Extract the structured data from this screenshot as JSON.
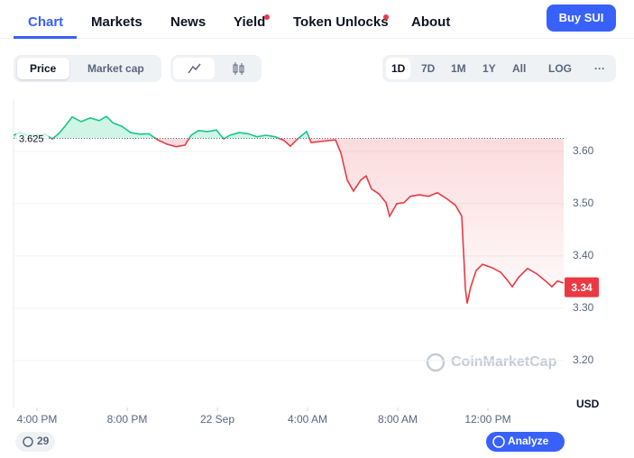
{
  "nav": {
    "tabs": [
      "Chart",
      "Markets",
      "News",
      "Yield",
      "Token Unlocks",
      "About"
    ],
    "buy_button": "Buy SUI"
  },
  "toolbar": {
    "toggle": [
      "Price",
      "Market cap"
    ],
    "ranges": [
      "1D",
      "7D",
      "1M",
      "1Y",
      "All",
      "LOG",
      "···"
    ]
  },
  "chart_data": {
    "type": "line",
    "color_up": "#16c784",
    "color_down": "#ea3943",
    "reference": 3.625,
    "current_price": 3.34,
    "y_unit": "USD",
    "watermark": "CoinMarketCap",
    "x": [
      14.96,
      15.24,
      15.56,
      15.96,
      16.36,
      16.68,
      16.96,
      17.24,
      17.56,
      17.96,
      18.36,
      18.76,
      19.08,
      19.36,
      19.76,
      20.16,
      20.56,
      20.96,
      21.36,
      21.76,
      22.16,
      22.56,
      22.84,
      23.16,
      23.56,
      23.96,
      24.28,
      24.56,
      24.96,
      25.36,
      25.76,
      26.16,
      26.56,
      26.96,
      27.24,
      27.56,
      27.96,
      28.16,
      28.56,
      28.96,
      29.24,
      29.48,
      29.76,
      30.04,
      30.36,
      30.6,
      30.84,
      31.16,
      31.48,
      31.64,
      31.96,
      32.28,
      32.56,
      32.96,
      33.36,
      33.76,
      34.16,
      34.56,
      34.84,
      35.0,
      35.08,
      35.24,
      35.48,
      35.76,
      36.16,
      36.56,
      36.84,
      37.08,
      37.36,
      37.76,
      38.16,
      38.56,
      38.84,
      39.08,
      39.36
    ],
    "series": [
      {
        "values": [
          3.631,
          3.636,
          3.631,
          3.631,
          3.633,
          3.624,
          3.634,
          3.648,
          3.666,
          3.657,
          3.664,
          3.659,
          3.667,
          3.655,
          3.648,
          3.636,
          3.633,
          3.634,
          3.622,
          3.614,
          3.609,
          3.612,
          3.631,
          3.64,
          3.638,
          3.641,
          3.624,
          3.631,
          3.636,
          3.634,
          3.628,
          3.631,
          3.628,
          3.621,
          3.61,
          3.624,
          3.638,
          3.617,
          3.619,
          3.621,
          3.622,
          3.597,
          3.545,
          3.524,
          3.545,
          3.553,
          3.528,
          3.519,
          3.502,
          3.476,
          3.5,
          3.502,
          3.514,
          3.517,
          3.514,
          3.521,
          3.51,
          3.497,
          3.476,
          3.338,
          3.309,
          3.341,
          3.372,
          3.384,
          3.378,
          3.369,
          3.355,
          3.341,
          3.359,
          3.376,
          3.366,
          3.352,
          3.341,
          3.352,
          3.348
        ]
      }
    ],
    "xlim": [
      14.96,
      39.36
    ],
    "ylim": [
      3.11,
      3.7
    ],
    "xticks": [
      {
        "value": 16,
        "label": "4:00 PM"
      },
      {
        "value": 20,
        "label": "8:00 PM"
      },
      {
        "value": 24,
        "label": "22 Sep"
      },
      {
        "value": 28,
        "label": "4:00 AM"
      },
      {
        "value": 32,
        "label": "8:00 AM"
      },
      {
        "value": 36,
        "label": "12:00 PM"
      }
    ],
    "yticks": [
      {
        "value": 3.2,
        "label": "3.20"
      },
      {
        "value": 3.3,
        "label": "3.30"
      },
      {
        "value": 3.4,
        "label": "3.40"
      },
      {
        "value": 3.5,
        "label": "3.50"
      },
      {
        "value": 3.6,
        "label": "3.60"
      }
    ],
    "grid": true
  },
  "footer": {
    "badge": "29",
    "analyze": "Analyze"
  }
}
